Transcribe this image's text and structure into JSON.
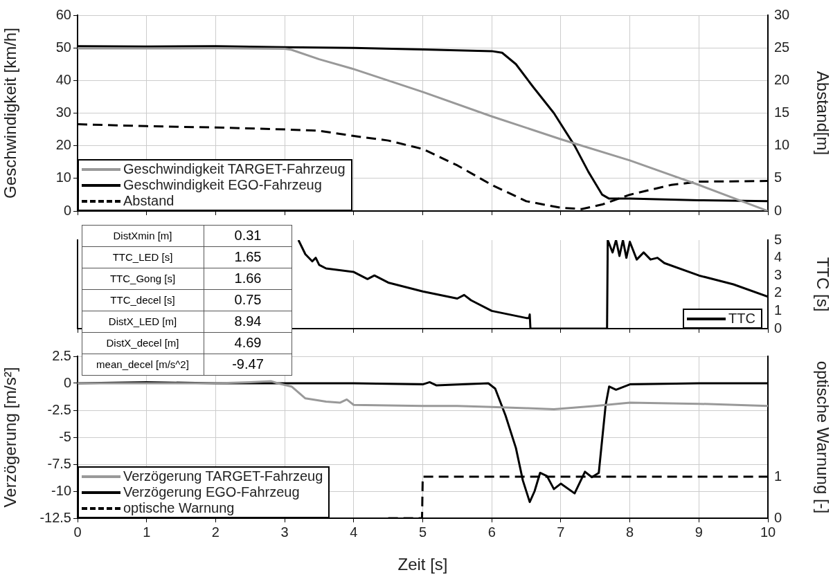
{
  "chart_data": [
    {
      "type": "line",
      "ylabel": "Geschwindigkeit [km/h]",
      "y2label": "Abstand[m]",
      "xlim": [
        0,
        10
      ],
      "xticks": [
        0,
        1,
        2,
        3,
        4,
        5,
        6,
        7,
        8,
        9,
        10
      ],
      "ylim": [
        0,
        60
      ],
      "yticks": [
        0,
        10,
        20,
        30,
        40,
        50,
        60
      ],
      "y2lim": [
        0,
        30
      ],
      "y2ticks": [
        0,
        5,
        10,
        15,
        20,
        25,
        30
      ],
      "grid": true,
      "legend": "bottom left",
      "tick_labels": "y",
      "series": [
        {
          "name": "Geschwindigkeit TARGET-Fahrzeug",
          "color": "#999999",
          "x": [
            0,
            1,
            2,
            3,
            3.1,
            3.5,
            4,
            5,
            6,
            7,
            8,
            9,
            10
          ],
          "values": [
            49.8,
            49.8,
            49.9,
            49.7,
            49.4,
            46.5,
            43.5,
            36.5,
            29,
            22,
            15.5,
            8,
            0
          ]
        },
        {
          "name": "Geschwindigkeit EGO-Fahrzeug",
          "color": "#000000",
          "x": [
            0,
            1,
            2,
            3,
            4,
            5,
            6,
            6.15,
            6.35,
            6.6,
            6.9,
            7.2,
            7.4,
            7.6,
            7.7,
            8,
            9,
            10
          ],
          "values": [
            50.5,
            50.4,
            50.5,
            50.2,
            50,
            49.5,
            49,
            48.5,
            45,
            38,
            30,
            20,
            12,
            5,
            3.8,
            3.8,
            3.3,
            3
          ]
        },
        {
          "name": "Abstand",
          "color": "#000000",
          "line_style": "dashed",
          "axis": "y2",
          "x": [
            0,
            1,
            2,
            3,
            3.5,
            4,
            4.5,
            5,
            5.5,
            6,
            6.5,
            7,
            7.3,
            7.6,
            8,
            8.6,
            9,
            10
          ],
          "values": [
            13.3,
            13,
            12.8,
            12.5,
            12.3,
            11.5,
            10.8,
            9.5,
            7,
            4,
            1.5,
            0.5,
            0.3,
            1,
            2.5,
            4,
            4.5,
            4.6
          ]
        }
      ]
    },
    {
      "type": "line",
      "y2label": "TTC [s]",
      "xlim": [
        0,
        10
      ],
      "xticks": [
        0,
        1,
        2,
        3,
        4,
        5,
        6,
        7,
        8,
        9,
        10
      ],
      "y2lim": [
        0,
        5
      ],
      "y2ticks": [
        0,
        1,
        2,
        3,
        4,
        5
      ],
      "grid": "x",
      "legend": "bottom right",
      "tick_labels": "y",
      "annotations": [
        "DistXmin [m]",
        "0.31",
        "TTC_LED [s]",
        "1.65",
        "TTC_Gong [s]",
        "1.66",
        "TTC_decel [s]",
        "0.75",
        "DistX_LED [m]",
        "8.94",
        "DistX_decel [m]",
        "4.69",
        "mean_decel [m/s^2]",
        "-9.47"
      ],
      "series": [
        {
          "name": "TTC",
          "color": "#000000",
          "axis": "y2",
          "x": [
            3.2,
            3.3,
            3.4,
            3.45,
            3.5,
            3.6,
            4,
            4.2,
            4.3,
            4.5,
            5,
            5.5,
            5.6,
            5.7,
            6,
            6.5,
            6.54,
            6.55,
            6.56,
            7.67,
            7.68,
            7.75,
            7.8,
            7.85,
            7.9,
            7.95,
            8.0,
            8.1,
            8.2,
            8.3,
            8.4,
            8.5,
            9,
            9.5,
            10
          ],
          "values": [
            5,
            4.2,
            3.8,
            4.0,
            3.6,
            3.4,
            3.2,
            2.8,
            3.0,
            2.6,
            2.1,
            1.7,
            1.9,
            1.6,
            1.0,
            0.6,
            0.6,
            0.8,
            0,
            0,
            5,
            4.3,
            5,
            4.1,
            5,
            4.0,
            4.9,
            3.9,
            4.3,
            3.9,
            4.0,
            3.7,
            3.0,
            2.5,
            1.8
          ]
        }
      ]
    },
    {
      "type": "line",
      "xlabel": "Zeit [s]",
      "ylabel": "Verzögerung [m/s²]",
      "y2label": "optische Warnung [-]",
      "xlim": [
        0,
        10
      ],
      "xticks": [
        0,
        1,
        2,
        3,
        4,
        5,
        6,
        7,
        8,
        9,
        10
      ],
      "ylim": [
        -12.5,
        2.5
      ],
      "yticks": [
        -12.5,
        -10,
        -7.5,
        -5,
        -2.5,
        0,
        2.5
      ],
      "y2lim": [
        0,
        3.9
      ],
      "y2ticks": [
        0,
        1
      ],
      "grid": true,
      "legend": "bottom left",
      "series": [
        {
          "name": "Verzögerung TARGET-Fahrzeug",
          "color": "#999999",
          "x": [
            0,
            1,
            2,
            2.5,
            2.8,
            2.9,
            3.1,
            3.3,
            3.6,
            3.8,
            3.9,
            4,
            5,
            5.5,
            6,
            6.5,
            6.9,
            7.5,
            8,
            9,
            10
          ],
          "values": [
            0,
            0,
            0,
            0.1,
            0.2,
            0,
            -0.3,
            -1.4,
            -1.7,
            -1.8,
            -1.5,
            -2.0,
            -2.1,
            -2.1,
            -2.2,
            -2.3,
            -2.4,
            -2.1,
            -1.8,
            -1.9,
            -2.1
          ]
        },
        {
          "name": "Verzögerung EGO-Fahrzeug",
          "color": "#000000",
          "x": [
            0,
            1,
            2,
            3,
            4,
            5,
            5.1,
            5.2,
            5.95,
            6.05,
            6.2,
            6.35,
            6.45,
            6.55,
            6.62,
            6.7,
            6.8,
            6.9,
            7.0,
            7.2,
            7.35,
            7.45,
            7.55,
            7.65,
            7.7,
            7.8,
            8,
            9,
            10
          ],
          "values": [
            0,
            0.1,
            0,
            0,
            0,
            -0.1,
            0.1,
            -0.2,
            0,
            -0.5,
            -3,
            -6,
            -9,
            -11,
            -10,
            -8.3,
            -8.6,
            -9.8,
            -9.3,
            -10.2,
            -8.2,
            -8.7,
            -8.3,
            -2,
            -0.3,
            -0.6,
            -0.1,
            0,
            0
          ]
        },
        {
          "name": "optische Warnung",
          "color": "#000000",
          "line_style": "dashed",
          "axis": "y2",
          "x": [
            4.5,
            4.99,
            5,
            10
          ],
          "values": [
            0,
            0,
            1,
            1
          ]
        }
      ]
    }
  ]
}
